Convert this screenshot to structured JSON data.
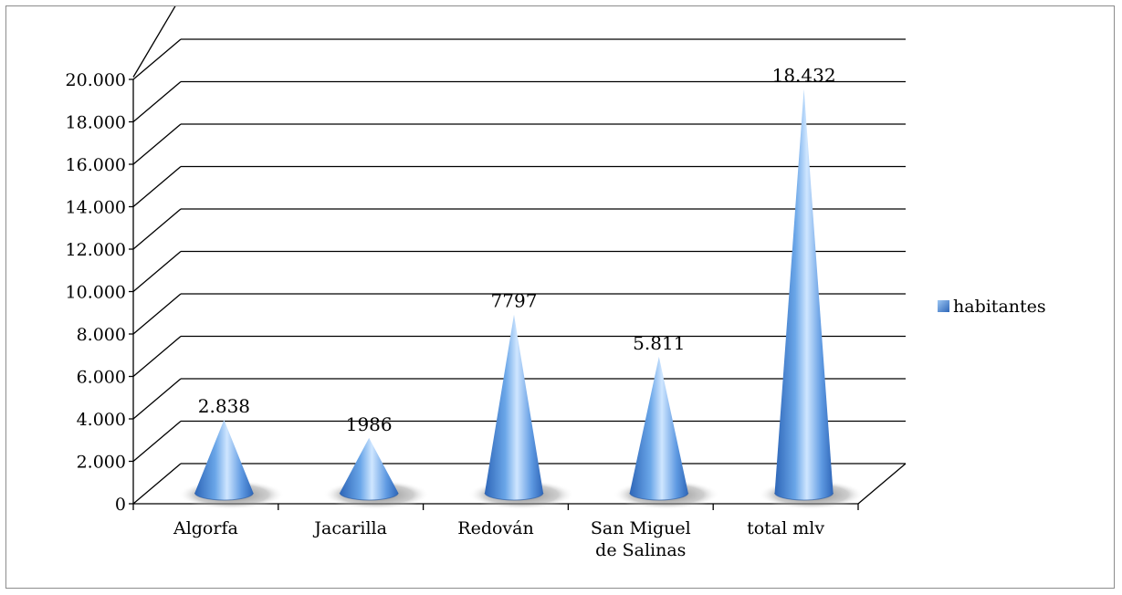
{
  "chart_data": {
    "type": "bar",
    "bar_shape": "cone",
    "categories": [
      [
        "Algorfa"
      ],
      [
        "Jacarilla"
      ],
      [
        "Redován"
      ],
      [
        "San Miguel",
        "de Salinas"
      ],
      [
        "total mlv"
      ]
    ],
    "series": [
      {
        "name": "habitantes",
        "values": [
          2838,
          1986,
          7797,
          5811,
          18432
        ],
        "data_labels": [
          "2.838",
          "1986",
          "7797",
          "5.811",
          "18.432"
        ]
      }
    ],
    "yticks": [
      "0",
      "2.000",
      "4.000",
      "6.000",
      "8.000",
      "10.000",
      "12.000",
      "14.000",
      "16.000",
      "18.000",
      "20.000"
    ],
    "ylim": [
      0,
      20000
    ],
    "title": "",
    "xlabel": "",
    "ylabel": "",
    "grid": true,
    "legend": "right",
    "colors": {
      "cone_dark": "#2e66b8",
      "cone_light": "#cfe6ff",
      "cone_mid": "#6aa6e8",
      "shadow": "#7f7f7f",
      "gridline": "#000000"
    }
  }
}
